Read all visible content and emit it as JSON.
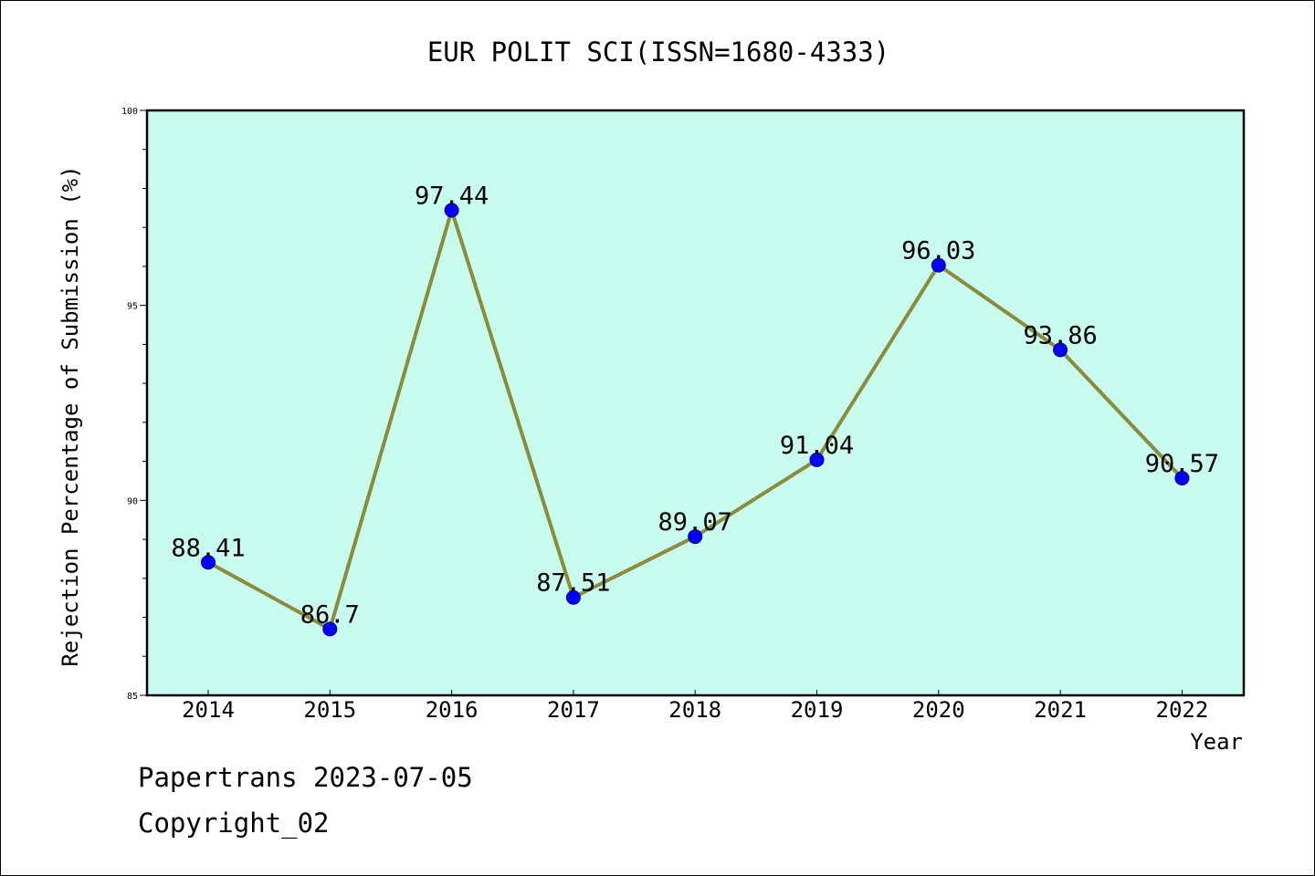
{
  "chart_data": {
    "type": "line",
    "title": "EUR POLIT SCI(ISSN=1680-4333)",
    "xlabel": "Year",
    "ylabel": "Rejection Percentage of Submission (%)",
    "categories": [
      "2014",
      "2015",
      "2016",
      "2017",
      "2018",
      "2019",
      "2020",
      "2021",
      "2022"
    ],
    "values": [
      88.41,
      86.7,
      97.44,
      87.51,
      89.07,
      91.04,
      96.03,
      93.86,
      90.57
    ],
    "data_labels": [
      "88.41",
      "86.7",
      "97.44",
      "87.51",
      "89.07",
      "91.04",
      "96.03",
      "93.86",
      "90.57"
    ],
    "ylim": [
      85,
      100
    ],
    "yticks": [
      85,
      90,
      95,
      100
    ],
    "ytick_labels": [
      "85",
      "90",
      "95",
      "100"
    ],
    "grid": false,
    "legend": "none",
    "colors": {
      "plot_background": "#c8fcee",
      "line": "#8b8b3a",
      "marker": "#0000ff"
    }
  },
  "footer": {
    "line1": "Papertrans 2023-07-05",
    "line2": "Copyright_02"
  }
}
